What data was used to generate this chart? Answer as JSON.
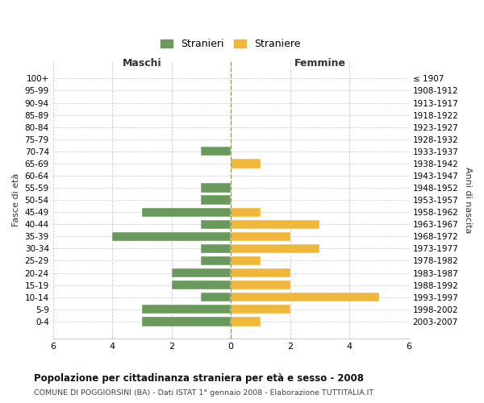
{
  "age_groups": [
    "100+",
    "95-99",
    "90-94",
    "85-89",
    "80-84",
    "75-79",
    "70-74",
    "65-69",
    "60-64",
    "55-59",
    "50-54",
    "45-49",
    "40-44",
    "35-39",
    "30-34",
    "25-29",
    "20-24",
    "15-19",
    "10-14",
    "5-9",
    "0-4"
  ],
  "birth_years": [
    "≤ 1907",
    "1908-1912",
    "1913-1917",
    "1918-1922",
    "1923-1927",
    "1928-1932",
    "1933-1937",
    "1938-1942",
    "1943-1947",
    "1948-1952",
    "1953-1957",
    "1958-1962",
    "1963-1967",
    "1968-1972",
    "1973-1977",
    "1978-1982",
    "1983-1987",
    "1988-1992",
    "1993-1997",
    "1998-2002",
    "2003-2007"
  ],
  "males": [
    0,
    0,
    0,
    0,
    0,
    0,
    1,
    0,
    0,
    1,
    1,
    3,
    1,
    4,
    1,
    1,
    2,
    2,
    1,
    3,
    3
  ],
  "females": [
    0,
    0,
    0,
    0,
    0,
    0,
    0,
    1,
    0,
    0,
    0,
    1,
    3,
    2,
    3,
    1,
    2,
    2,
    5,
    2,
    1
  ],
  "male_color": "#6a9a5b",
  "female_color": "#f0b83a",
  "center_line_color": "#999966",
  "grid_color": "#cccccc",
  "background_color": "#ffffff",
  "title": "Popolazione per cittadinanza straniera per età e sesso - 2008",
  "subtitle": "COMUNE DI POGGIORSINI (BA) - Dati ISTAT 1° gennaio 2008 - Elaborazione TUTTITALIA.IT",
  "xlabel_left": "Maschi",
  "xlabel_right": "Femmine",
  "ylabel_left": "Fasce di età",
  "ylabel_right": "Anni di nascita",
  "legend_male": "Stranieri",
  "legend_female": "Straniere",
  "xlim": 6,
  "xticks": [
    -6,
    -4,
    -2,
    0,
    2,
    4,
    6
  ],
  "xticklabels": [
    "6",
    "4",
    "2",
    "0",
    "2",
    "4",
    "6"
  ]
}
